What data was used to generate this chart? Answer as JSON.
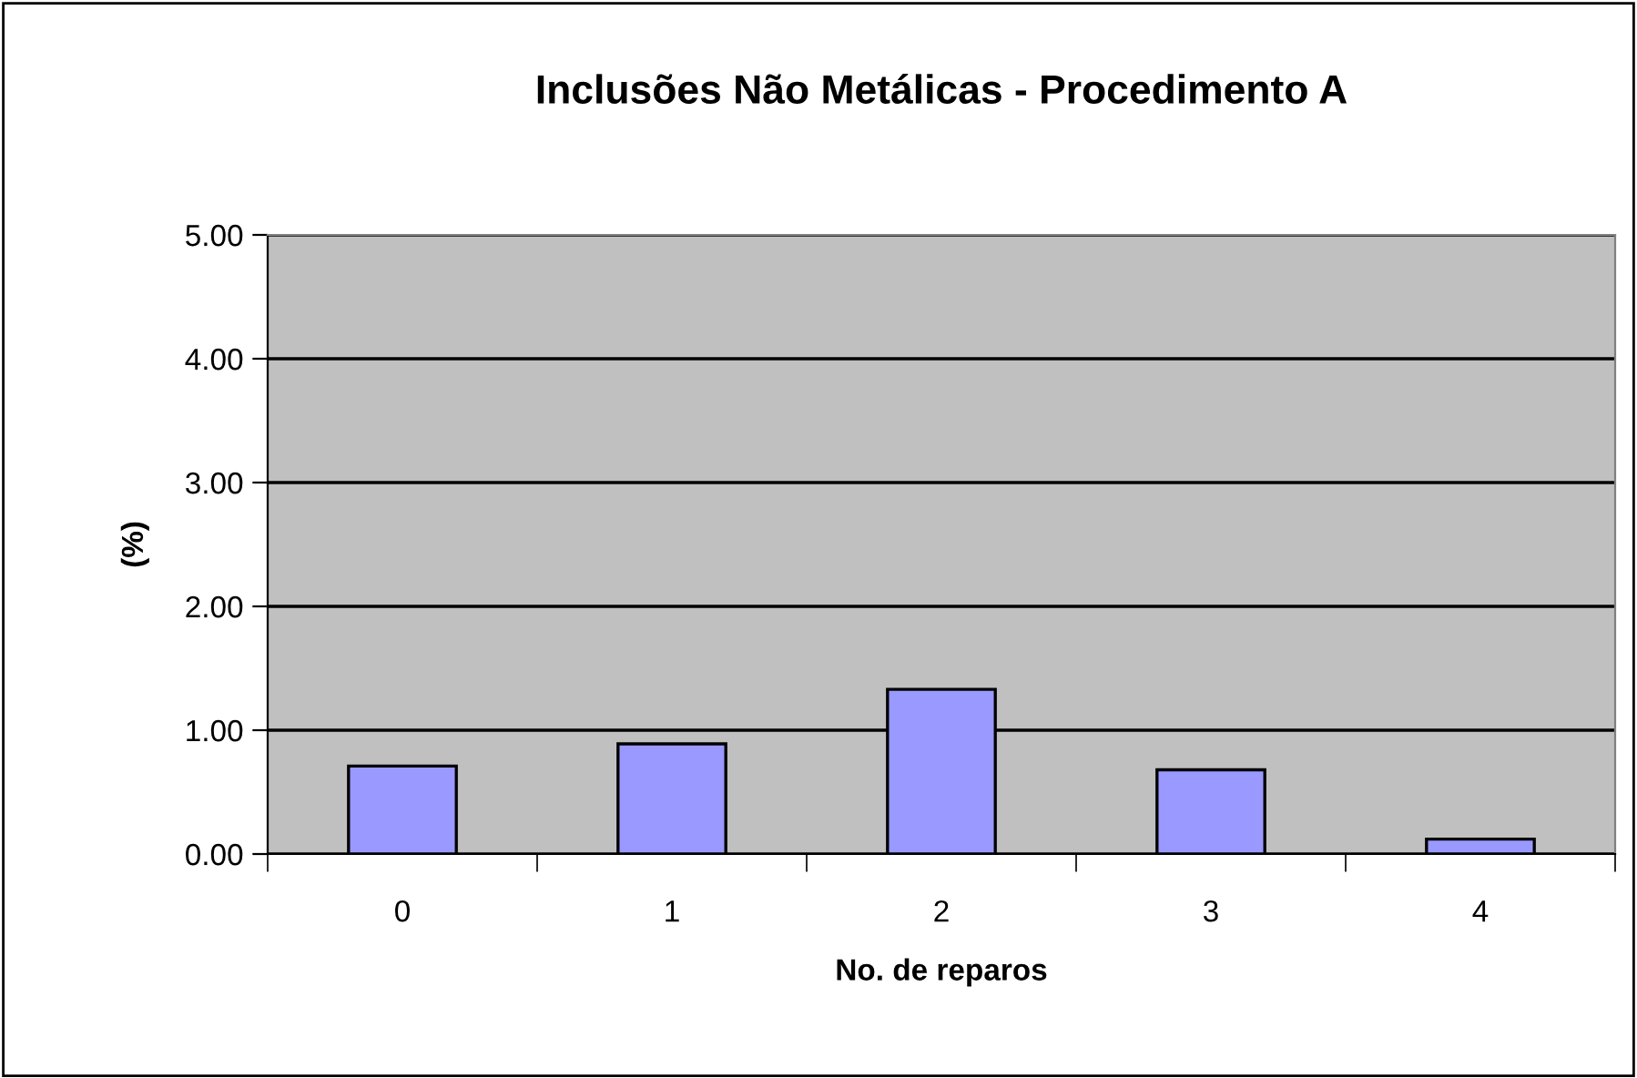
{
  "chart_data": {
    "type": "bar",
    "title": "Inclusões Não Metálicas - Procedimento A",
    "xlabel": "No. de reparos",
    "ylabel": "(%)",
    "categories": [
      "0",
      "1",
      "2",
      "3",
      "4"
    ],
    "values": [
      0.71,
      0.89,
      1.33,
      0.68,
      0.12
    ],
    "color": "#9999ff",
    "ylim": [
      0,
      5
    ],
    "yticks": [
      {
        "value": 0,
        "label": "0.00"
      },
      {
        "value": 1,
        "label": "1.00"
      },
      {
        "value": 2,
        "label": "2.00"
      },
      {
        "value": 3,
        "label": "3.00"
      },
      {
        "value": 4,
        "label": "4.00"
      },
      {
        "value": 5,
        "label": "5.00"
      }
    ],
    "grid": "y",
    "legend": false
  }
}
